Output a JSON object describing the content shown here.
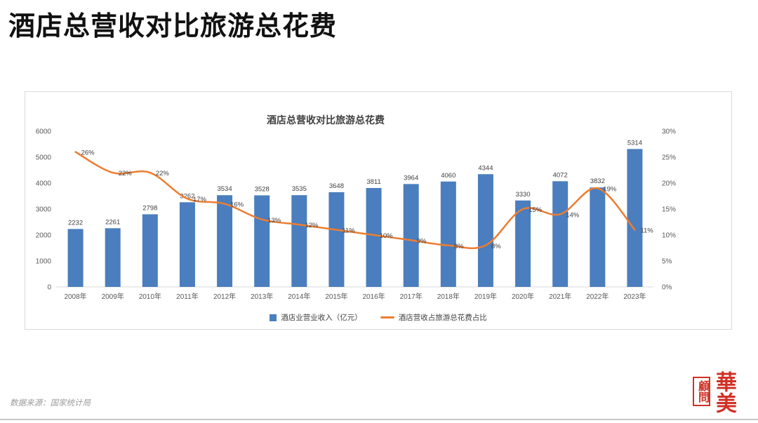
{
  "page": {
    "title": "酒店总营收对比旅游总花费",
    "source": "数据来源：国家统计局"
  },
  "logo": {
    "primary": "華美",
    "secondary": "顧問"
  },
  "chart_data": {
    "type": "bar",
    "combo": "bar+line",
    "title": "酒店总营收对比旅游总花费",
    "categories": [
      "2008年",
      "2009年",
      "2010年",
      "2011年",
      "2012年",
      "2013年",
      "2014年",
      "2015年",
      "2016年",
      "2017年",
      "2018年",
      "2019年",
      "2020年",
      "2021年",
      "2022年",
      "2023年"
    ],
    "series": [
      {
        "name": "酒店业营业收入（亿元）",
        "type": "bar",
        "axis": "left",
        "color": "#4A7EBE",
        "values": [
          2232,
          2261,
          2798,
          3262,
          3534,
          3528,
          3535,
          3648,
          3811,
          3964,
          4060,
          4344,
          3330,
          4072,
          3832,
          5314
        ]
      },
      {
        "name": "酒店营收占旅游总花费占比",
        "type": "line",
        "axis": "right",
        "color": "#ED7D31",
        "values": [
          26,
          22,
          22,
          17,
          16,
          13,
          12,
          11,
          10,
          9,
          8,
          8,
          15,
          14,
          19,
          11
        ],
        "labels": [
          "26%",
          "22%",
          "22%",
          "17%",
          "16%",
          "13%",
          "12%",
          "11%",
          "10%",
          "9%",
          "8%",
          "8%",
          "15%",
          "14%",
          "19%",
          "11%"
        ]
      }
    ],
    "left_axis": {
      "min": 0,
      "max": 6000,
      "step": 1000,
      "ticks": [
        "0",
        "1000",
        "2000",
        "3000",
        "4000",
        "5000",
        "6000"
      ]
    },
    "right_axis": {
      "min": 0,
      "max": 30,
      "step": 5,
      "ticks": [
        "0%",
        "5%",
        "10%",
        "15%",
        "20%",
        "25%",
        "30%"
      ]
    },
    "legend_position": "bottom",
    "grid": false
  }
}
